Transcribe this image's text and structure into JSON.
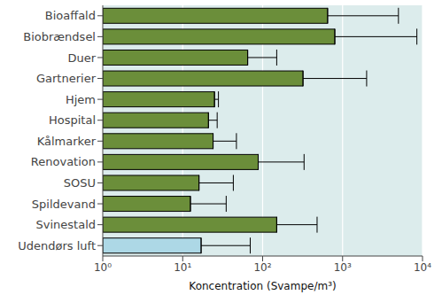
{
  "chart_data": {
    "type": "bar",
    "orientation": "horizontal",
    "log": "x",
    "grid": true,
    "xlabel": "Koncentration (Svampe/m³)",
    "categories": [
      "Bioaffald",
      "Biobrændsel",
      "Duer",
      "Gartnerier",
      "Hjem",
      "Hospital",
      "Kålmarker",
      "Renovation",
      "SOSU",
      "Spildevand",
      "Svinestald",
      "Udendørs luft"
    ],
    "values": [
      650,
      800,
      65,
      320,
      25,
      21,
      24,
      88,
      16,
      12.5,
      150,
      17
    ],
    "errors": [
      4350,
      7700,
      85,
      1680,
      3,
      6,
      23,
      242,
      27,
      22.5,
      330,
      53
    ],
    "colors": [
      "#6b8e3a",
      "#6b8e3a",
      "#6b8e3a",
      "#6b8e3a",
      "#6b8e3a",
      "#6b8e3a",
      "#6b8e3a",
      "#6b8e3a",
      "#6b8e3a",
      "#6b8e3a",
      "#6b8e3a",
      "#add8e6"
    ],
    "xlim": [
      1,
      10000
    ],
    "xticks": [
      {
        "value": 1,
        "label": "10⁰"
      },
      {
        "value": 10,
        "label": "10¹"
      },
      {
        "value": 100,
        "label": "10²"
      },
      {
        "value": 1000,
        "label": "10³"
      },
      {
        "value": 10000,
        "label": "10⁴"
      }
    ]
  }
}
